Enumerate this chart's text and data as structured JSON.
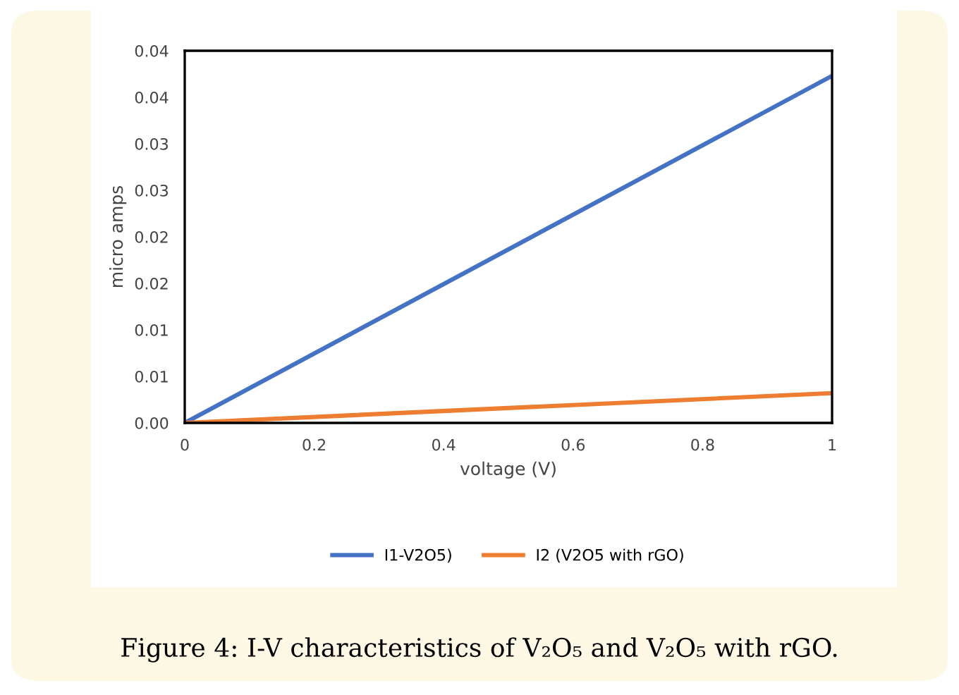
{
  "chart_data": {
    "type": "line",
    "xlabel": "voltage (V)",
    "ylabel": "micro amps",
    "x": [
      0,
      1
    ],
    "series": [
      {
        "name": "I1-V2O5)",
        "color": "#4472c4",
        "values": [
          0,
          0.0373
        ]
      },
      {
        "name": "I2 (V2O5 with rGO)",
        "color": "#ed7d31",
        "values": [
          0,
          0.0032
        ]
      }
    ],
    "xlim": [
      0,
      1
    ],
    "xticks": [
      0,
      0.2,
      0.4,
      0.6,
      0.8,
      1
    ],
    "ylim": [
      0,
      0.04
    ],
    "yticks": [
      {
        "value": 0,
        "label": "0.00"
      },
      {
        "value": 0.005,
        "label": "0.01"
      },
      {
        "value": 0.01,
        "label": "0.01"
      },
      {
        "value": 0.015,
        "label": "0.02"
      },
      {
        "value": 0.02,
        "label": "0.02"
      },
      {
        "value": 0.025,
        "label": "0.03"
      },
      {
        "value": 0.03,
        "label": "0.03"
      },
      {
        "value": 0.035,
        "label": "0.04"
      },
      {
        "value": 0.04,
        "label": "0.04"
      }
    ],
    "grid": false,
    "legend": "bottom",
    "marker": "none",
    "line_style": "solid",
    "annotations": [
      "Figure 4: I-V characteristics of V₂O₅ and V₂O₅ with rGO."
    ]
  }
}
